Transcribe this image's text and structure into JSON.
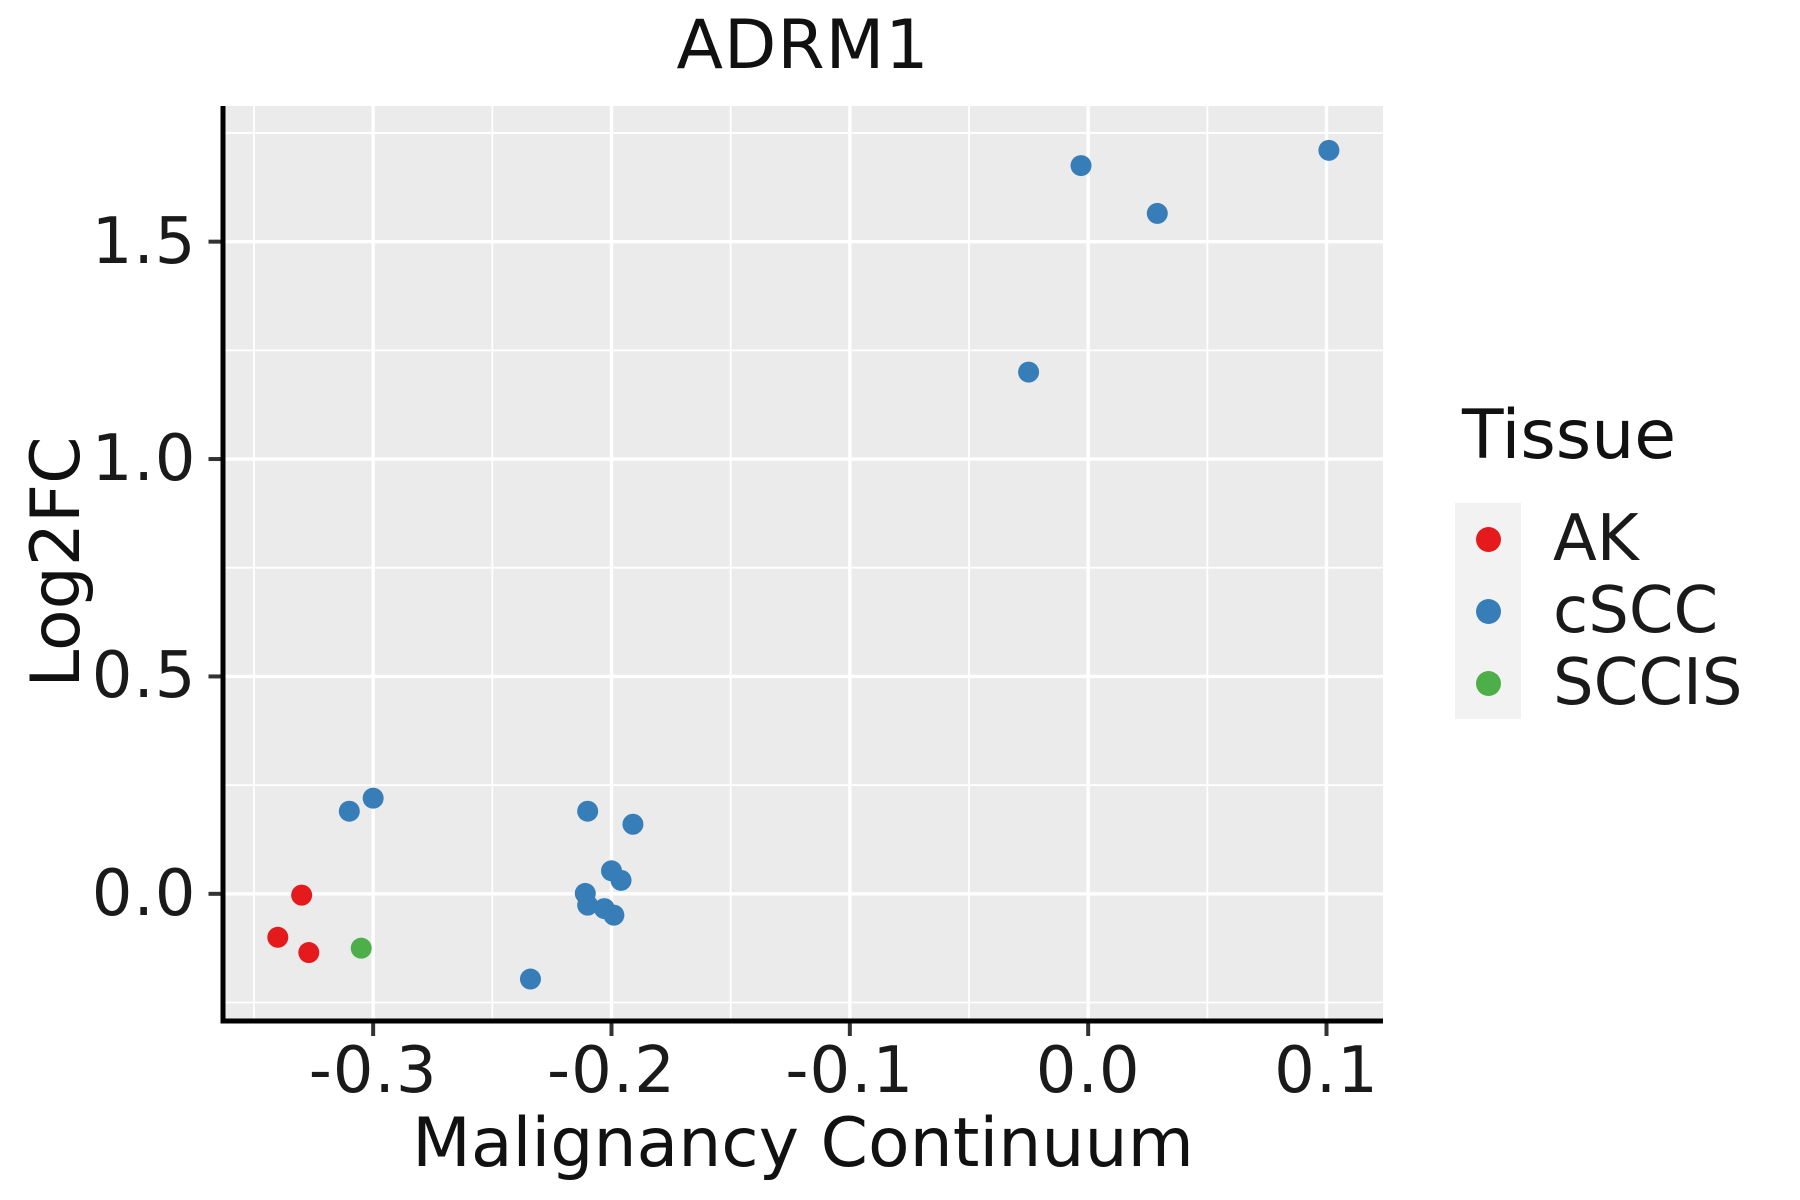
{
  "chart_data": {
    "type": "scatter",
    "title": "ADRM1",
    "xlabel": "Malignancy Continuum",
    "ylabel": "Log2FC",
    "panel_bg": "#ebebeb",
    "grid_color": "#ffffff",
    "axis_line_color": "#000000",
    "tick_color": "#333333",
    "point_radius_px": 10.5,
    "x_axis": {
      "range": [
        -0.363,
        0.1237
      ],
      "ticks": [
        -0.3,
        -0.2,
        -0.1,
        0.0,
        0.1
      ],
      "tick_labels": [
        "-0.3",
        "-0.2",
        "-0.1",
        "0.0",
        "0.1"
      ],
      "minor_ticks": [
        -0.35,
        -0.25,
        -0.15,
        -0.05,
        0.05
      ]
    },
    "y_axis": {
      "range": [
        -0.2925,
        1.812
      ],
      "ticks": [
        0.0,
        0.5,
        1.0,
        1.5
      ],
      "tick_labels": [
        "0.0",
        "0.5",
        "1.0",
        "1.5"
      ],
      "minor_ticks": [
        -0.25,
        0.25,
        0.75,
        1.25,
        1.75
      ]
    },
    "legend": {
      "title": "Tissue",
      "position": "right",
      "key_bg": "#f2f2f2"
    },
    "series": [
      {
        "name": "AK",
        "color": "#e41a1c",
        "points": [
          [
            -0.33,
            -0.003
          ],
          [
            -0.34,
            -0.1
          ],
          [
            -0.327,
            -0.135
          ]
        ]
      },
      {
        "name": "cSCC",
        "color": "#377eb8",
        "points": [
          [
            0.101,
            1.71
          ],
          [
            -0.003,
            1.675
          ],
          [
            0.029,
            1.565
          ],
          [
            -0.025,
            1.2
          ],
          [
            -0.31,
            0.19
          ],
          [
            -0.3,
            0.22
          ],
          [
            -0.21,
            0.19
          ],
          [
            -0.191,
            0.16
          ],
          [
            -0.2,
            0.053
          ],
          [
            -0.196,
            0.031
          ],
          [
            -0.211,
            0.001
          ],
          [
            -0.21,
            -0.026
          ],
          [
            -0.203,
            -0.034
          ],
          [
            -0.199,
            -0.049
          ],
          [
            -0.234,
            -0.196
          ]
        ]
      },
      {
        "name": "SCCIS",
        "color": "#4daf4a",
        "points": [
          [
            -0.305,
            -0.125
          ]
        ]
      }
    ]
  }
}
